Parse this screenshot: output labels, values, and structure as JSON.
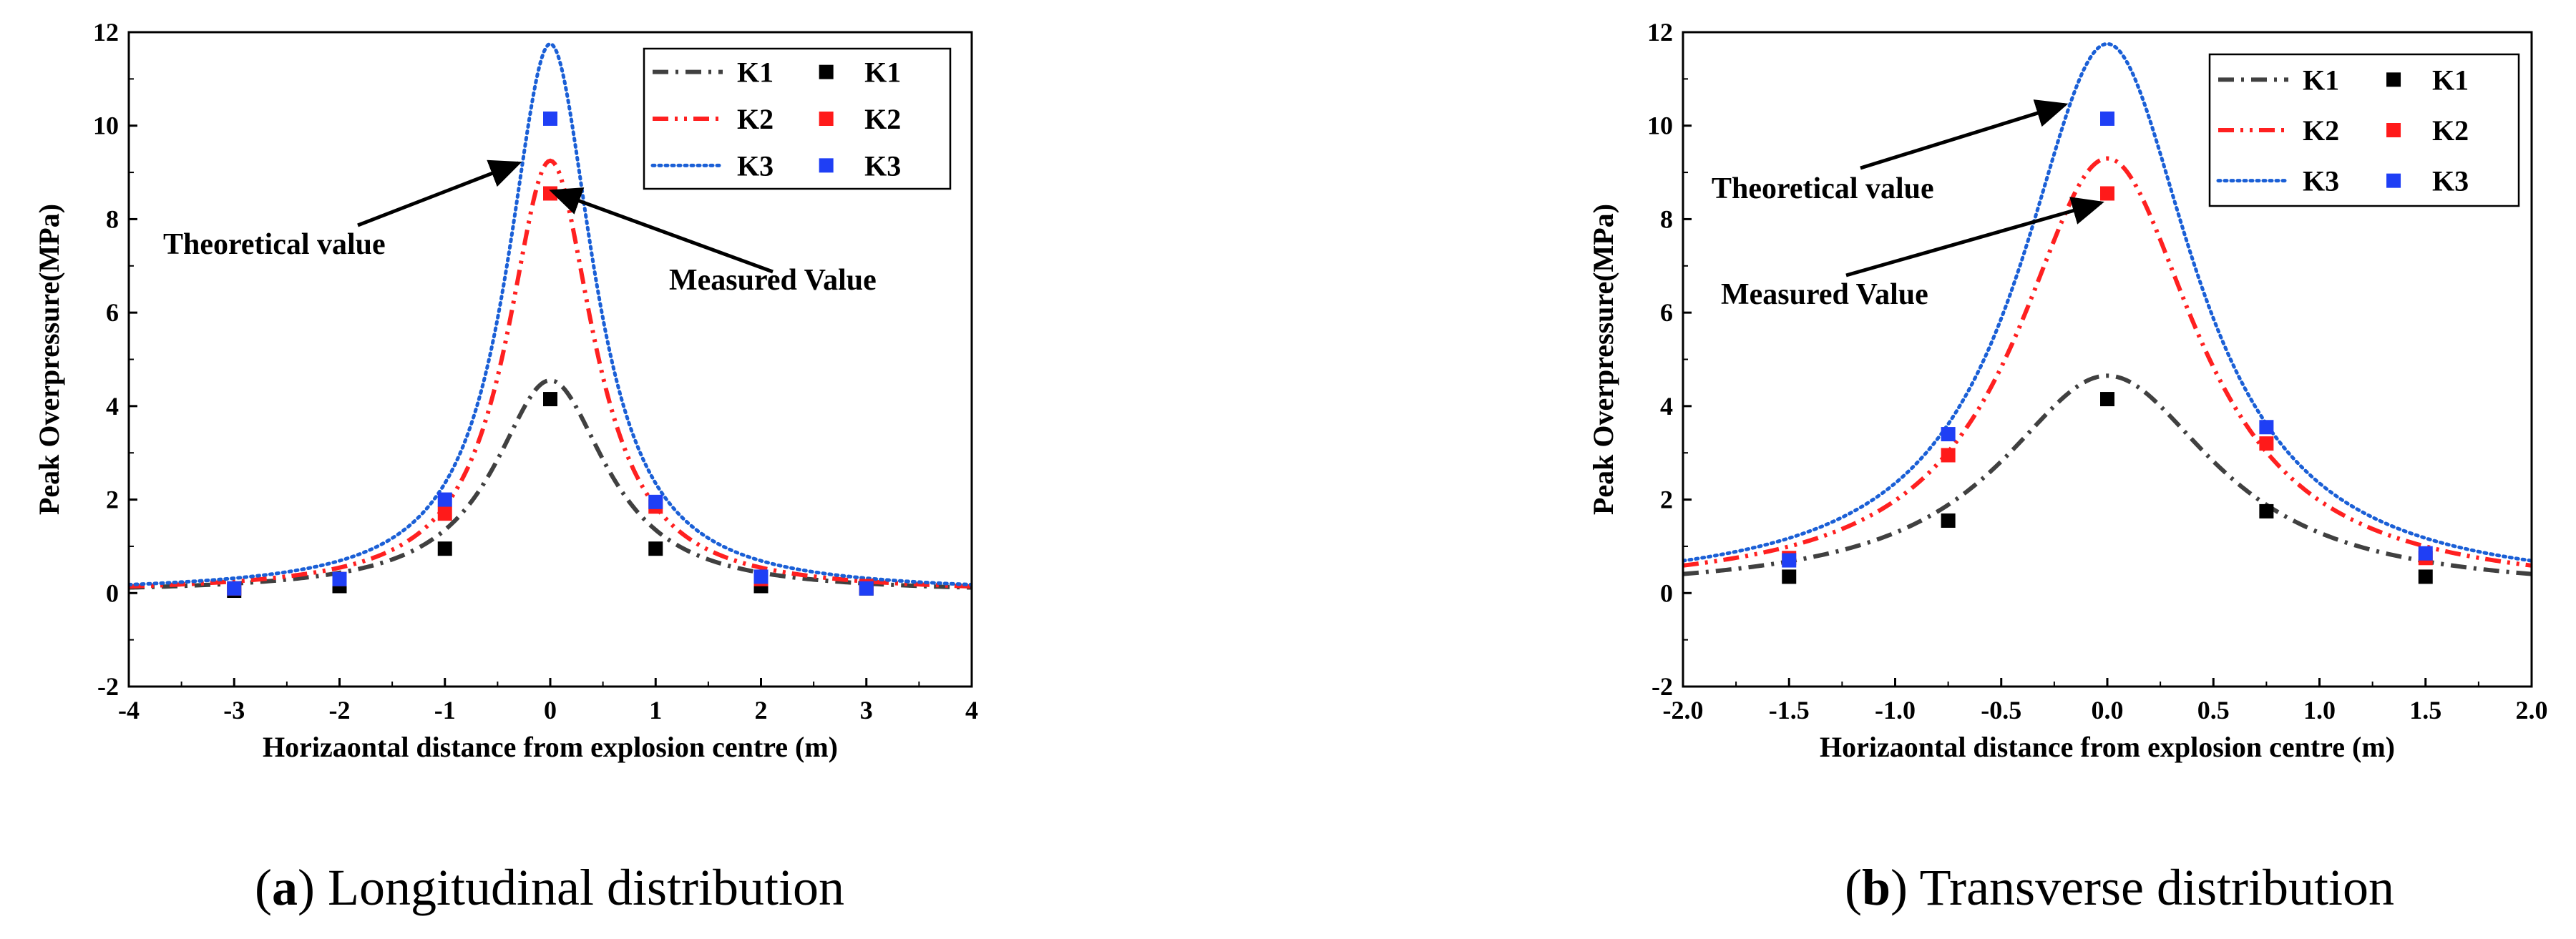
{
  "chart_data": [
    {
      "type": "line",
      "caption_letter": "a",
      "caption_text": ") Longitudinal distribution",
      "caption_open": "(",
      "xlabel": "Horizaontal distance from explosion centre (m)",
      "ylabel": "Peak Overpressure(MPa)",
      "xlim": [
        -4,
        4
      ],
      "ylim": [
        -2,
        12
      ],
      "xticks": [
        -4,
        -3,
        -2,
        -1,
        0,
        1,
        2,
        3,
        4
      ],
      "xtick_labels": [
        "-4",
        "-3",
        "-2",
        "-1",
        "0",
        "1",
        "2",
        "3",
        "4"
      ],
      "yticks": [
        -2,
        0,
        2,
        4,
        6,
        8,
        10,
        12
      ],
      "ytick_labels": [
        "-2",
        "0",
        "2",
        "4",
        "6",
        "8",
        "10",
        "12"
      ],
      "theoretical_series": [
        {
          "name": "K1",
          "peak": 4.55,
          "width": 0.65,
          "color": "#404040",
          "style": "dash-dot"
        },
        {
          "name": "K2",
          "peak": 9.25,
          "width": 0.5,
          "color": "#ff2020",
          "style": "dash-dot-dot"
        },
        {
          "name": "K3",
          "peak": 11.75,
          "width": 0.5,
          "color": "#1a5fd6",
          "style": "dotted"
        }
      ],
      "measured_series": [
        {
          "name": "K1",
          "color": "#000000",
          "x": [
            -3,
            -2,
            -1,
            0,
            1,
            2,
            3
          ],
          "y": [
            0.05,
            0.15,
            0.95,
            4.15,
            0.95,
            0.15,
            0.1
          ]
        },
        {
          "name": "K2",
          "color": "#ff1a1a",
          "x": [
            -3,
            -2,
            -1,
            0,
            1,
            2,
            3
          ],
          "y": [
            0.1,
            0.3,
            1.7,
            8.55,
            1.85,
            0.3,
            0.15
          ]
        },
        {
          "name": "K3",
          "color": "#1f3ff5",
          "x": [
            -3,
            -2,
            -1,
            0,
            1,
            2,
            3
          ],
          "y": [
            0.1,
            0.3,
            2.0,
            10.15,
            1.95,
            0.35,
            0.1
          ]
        }
      ],
      "annotations": [
        {
          "text": "Theoretical value",
          "arrow_to": [
            -0.3,
            9.2
          ]
        },
        {
          "text": "Measured Value",
          "arrow_to": [
            0.02,
            8.6
          ]
        }
      ],
      "legend_position": "top-right"
    },
    {
      "type": "line",
      "caption_letter": "b",
      "caption_text": ") Transverse distribution",
      "caption_open": "(",
      "xlabel": "Horizaontal distance from explosion centre (m)",
      "ylabel": "Peak Overpressure(MPa)",
      "xlim": [
        -2.0,
        2.0
      ],
      "ylim": [
        -2,
        12
      ],
      "xticks": [
        -2.0,
        -1.5,
        -1.0,
        -0.5,
        0.0,
        0.5,
        1.0,
        1.5,
        2.0
      ],
      "xtick_labels": [
        "-2.0",
        "-1.5",
        "-1.0",
        "-0.5",
        "0.0",
        "0.5",
        "1.0",
        "1.5",
        "2.0"
      ],
      "yticks": [
        -2,
        0,
        2,
        4,
        6,
        8,
        10,
        12
      ],
      "ytick_labels": [
        "-2",
        "0",
        "2",
        "4",
        "6",
        "8",
        "10",
        "12"
      ],
      "theoretical_series": [
        {
          "name": "K1",
          "peak": 4.65,
          "width": 0.62,
          "color": "#404040",
          "style": "dash-dot"
        },
        {
          "name": "K2",
          "peak": 9.3,
          "width": 0.52,
          "color": "#ff2020",
          "style": "dash-dot-dot"
        },
        {
          "name": "K3",
          "peak": 11.75,
          "width": 0.5,
          "color": "#1a5fd6",
          "style": "dotted"
        }
      ],
      "measured_series": [
        {
          "name": "K1",
          "color": "#000000",
          "x": [
            -1.5,
            -0.75,
            0,
            0.75,
            1.5
          ],
          "y": [
            0.35,
            1.55,
            4.15,
            1.75,
            0.35
          ]
        },
        {
          "name": "K2",
          "color": "#ff1a1a",
          "x": [
            -1.5,
            -0.75,
            0,
            0.75,
            1.5
          ],
          "y": [
            0.75,
            2.95,
            8.55,
            3.2,
            0.75
          ]
        },
        {
          "name": "K3",
          "color": "#1f3ff5",
          "x": [
            -1.5,
            -0.75,
            0,
            0.75,
            1.5
          ],
          "y": [
            0.7,
            3.4,
            10.15,
            3.55,
            0.85
          ]
        }
      ],
      "annotations": [
        {
          "text": "Theoretical value",
          "arrow_to": [
            -0.2,
            10.45
          ]
        },
        {
          "text": "Measured Value",
          "arrow_to": [
            -0.03,
            8.35
          ]
        }
      ],
      "legend_position": "top-right"
    }
  ]
}
